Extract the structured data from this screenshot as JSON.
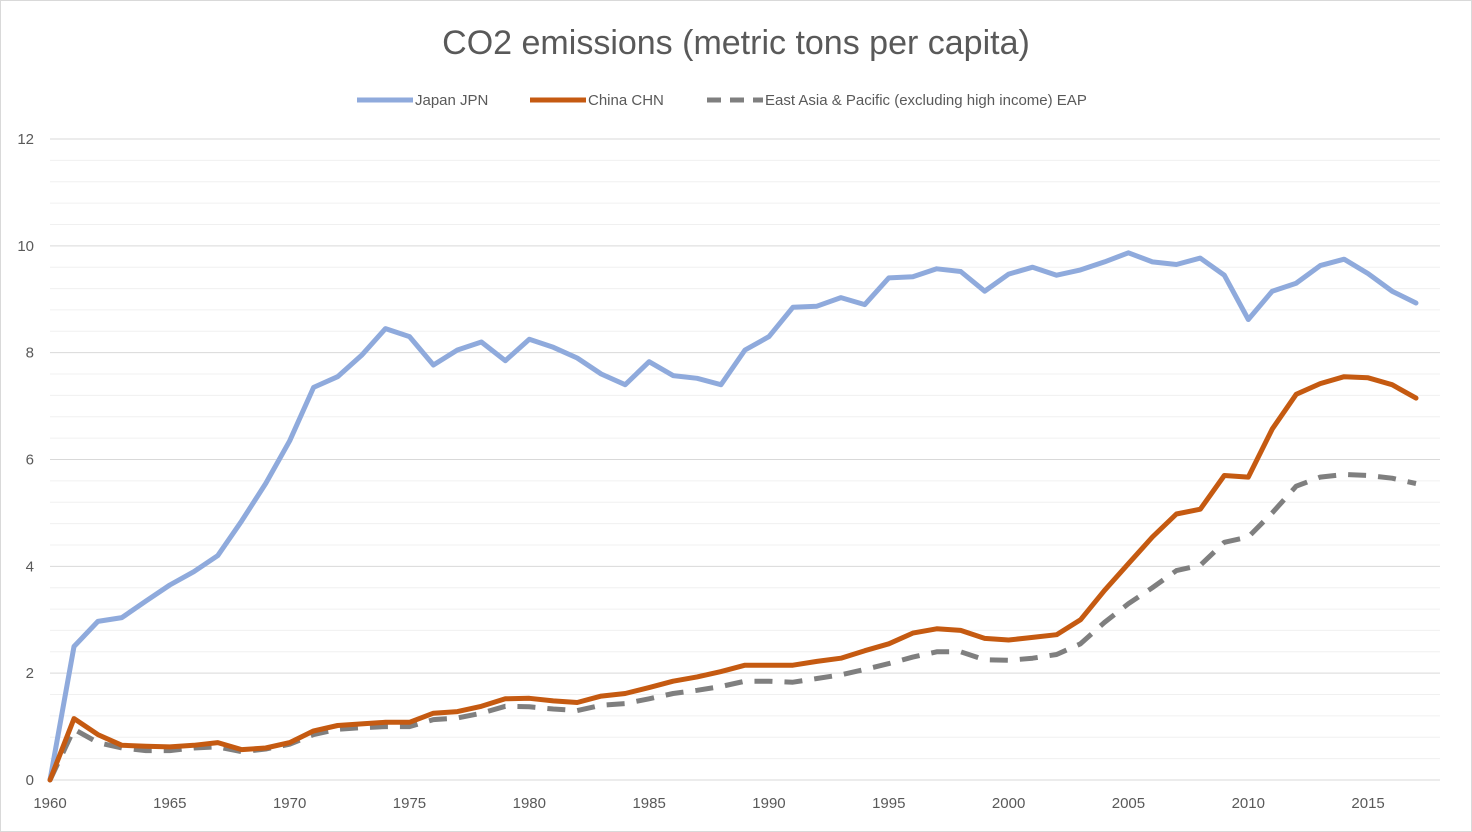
{
  "chart_data": {
    "type": "line",
    "title": "CO2 emissions (metric tons per capita)",
    "xlabel": "",
    "ylabel": "",
    "xlim": [
      1960,
      2018
    ],
    "ylim": [
      0,
      12
    ],
    "x_ticks": [
      "1960",
      "1965",
      "1970",
      "1975",
      "1980",
      "1985",
      "1990",
      "1995",
      "2000",
      "2005",
      "2010",
      "2015"
    ],
    "y_ticks": [
      "0",
      "2",
      "4",
      "6",
      "8",
      "10",
      "12"
    ],
    "grid": "horizontal",
    "legend_position": "top",
    "x": [
      1960,
      1961,
      1962,
      1963,
      1964,
      1965,
      1966,
      1967,
      1968,
      1969,
      1970,
      1971,
      1972,
      1973,
      1974,
      1975,
      1976,
      1977,
      1978,
      1979,
      1980,
      1981,
      1982,
      1983,
      1984,
      1985,
      1986,
      1987,
      1988,
      1989,
      1990,
      1991,
      1992,
      1993,
      1994,
      1995,
      1996,
      1997,
      1998,
      1999,
      2000,
      2001,
      2002,
      2003,
      2004,
      2005,
      2006,
      2007,
      2008,
      2009,
      2010,
      2011,
      2012,
      2013,
      2014,
      2015,
      2016,
      2017
    ],
    "series": [
      {
        "name": "Japan JPN",
        "color": "#8faadc",
        "style": "solid",
        "values": [
          0,
          2.5,
          2.97,
          3.04,
          3.35,
          3.65,
          3.9,
          4.2,
          4.85,
          5.55,
          6.35,
          7.35,
          7.55,
          7.95,
          8.45,
          8.3,
          7.77,
          8.05,
          8.2,
          7.85,
          8.25,
          8.1,
          7.9,
          7.6,
          7.4,
          7.83,
          7.57,
          7.52,
          7.4,
          8.05,
          8.3,
          8.85,
          8.87,
          9.03,
          8.9,
          9.4,
          9.42,
          9.57,
          9.52,
          9.15,
          9.47,
          9.6,
          9.45,
          9.55,
          9.7,
          9.87,
          9.7,
          9.65,
          9.77,
          9.45,
          8.62,
          9.15,
          9.3,
          9.63,
          9.75,
          9.48,
          9.15,
          8.93
        ]
      },
      {
        "name": "China CHN",
        "color": "#c55a11",
        "style": "solid",
        "values": [
          0,
          1.15,
          0.85,
          0.65,
          0.63,
          0.62,
          0.65,
          0.7,
          0.57,
          0.6,
          0.7,
          0.92,
          1.02,
          1.05,
          1.08,
          1.08,
          1.25,
          1.28,
          1.38,
          1.52,
          1.53,
          1.48,
          1.45,
          1.57,
          1.62,
          1.73,
          1.85,
          1.93,
          2.03,
          2.15,
          2.15,
          2.15,
          2.22,
          2.28,
          2.42,
          2.55,
          2.75,
          2.83,
          2.8,
          2.65,
          2.62,
          2.67,
          2.72,
          3.0,
          3.55,
          4.05,
          4.55,
          4.98,
          5.07,
          5.7,
          5.67,
          6.57,
          7.22,
          7.42,
          7.55,
          7.53,
          7.4,
          7.15
        ]
      },
      {
        "name": "East Asia & Pacific (excluding high income) EAP",
        "color": "#7f7f7f",
        "style": "dashed",
        "values": [
          0,
          0.95,
          0.7,
          0.6,
          0.55,
          0.55,
          0.6,
          0.62,
          0.53,
          0.58,
          0.67,
          0.85,
          0.95,
          0.98,
          1.0,
          1.0,
          1.13,
          1.16,
          1.25,
          1.38,
          1.37,
          1.33,
          1.3,
          1.4,
          1.43,
          1.52,
          1.62,
          1.68,
          1.75,
          1.85,
          1.85,
          1.83,
          1.9,
          1.97,
          2.07,
          2.18,
          2.3,
          2.4,
          2.4,
          2.25,
          2.24,
          2.28,
          2.35,
          2.55,
          2.95,
          3.3,
          3.6,
          3.92,
          4.02,
          4.45,
          4.55,
          5.0,
          5.5,
          5.67,
          5.72,
          5.7,
          5.65,
          5.55
        ]
      }
    ]
  }
}
